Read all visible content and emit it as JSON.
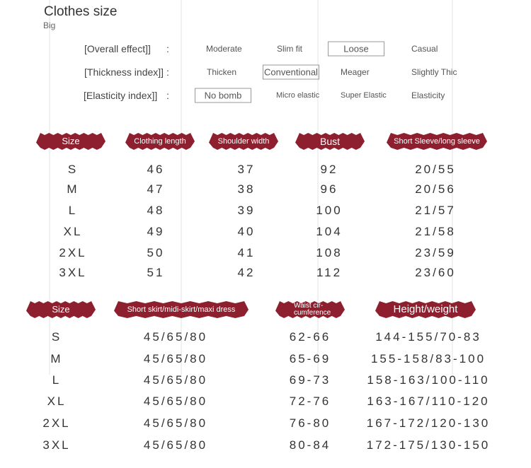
{
  "header": {
    "title": "Clothes size",
    "subtitle": "Big"
  },
  "attributes": [
    {
      "label": "[Overall effect]]",
      "colon": ":",
      "options": [
        {
          "text": "Moderate"
        },
        {
          "text": "Slim fit"
        },
        {
          "text": "Loose",
          "boxed": true
        },
        {
          "text": "Casual"
        }
      ]
    },
    {
      "label": "[Thickness index]]",
      "colon": ":",
      "options": [
        {
          "text": "Thicken"
        },
        {
          "text": "Conventional",
          "boxed": true
        },
        {
          "text": "Meager"
        },
        {
          "text": "Slightly Thic"
        }
      ]
    },
    {
      "label": "[Elasticity index]]",
      "colon": ":",
      "options": [
        {
          "text": "No bomb",
          "boxed": true
        },
        {
          "text": "Micro elastic"
        },
        {
          "text": "Super Elastic"
        },
        {
          "text": "Elasticity"
        }
      ]
    }
  ],
  "tables": [
    {
      "headers": [
        "Size",
        "Clothing length",
        "Shoulder width",
        "Bust",
        "Short Sleeve/long sleeve"
      ],
      "rows": [
        [
          "S",
          "46",
          "37",
          "92",
          "20/55"
        ],
        [
          "M",
          "47",
          "38",
          "96",
          "20/56"
        ],
        [
          "L",
          "48",
          "39",
          "100",
          "21/57"
        ],
        [
          "XL",
          "49",
          "40",
          "104",
          "21/58"
        ],
        [
          "2XL",
          "50",
          "41",
          "108",
          "23/59"
        ],
        [
          "3XL",
          "51",
          "42",
          "112",
          "23/60"
        ]
      ]
    },
    {
      "headers": [
        "Size",
        "Short skirt/midi-skirt/maxi dress",
        "Waist cir-\ncumference",
        "Height/weight"
      ],
      "rows": [
        [
          "S",
          "45/65/80",
          "62-66",
          "144-155/70-83"
        ],
        [
          "M",
          "45/65/80",
          "65-69",
          "155-158/83-100"
        ],
        [
          "L",
          "45/65/80",
          "69-73",
          "158-163/100-110"
        ],
        [
          "XL",
          "45/65/80",
          "72-76",
          "163-167/110-120"
        ],
        [
          "2XL",
          "45/65/80",
          "76-80",
          "167-172/120-130"
        ],
        [
          "3XL",
          "45/65/80",
          "80-84",
          "172-175/130-150"
        ]
      ]
    }
  ]
}
